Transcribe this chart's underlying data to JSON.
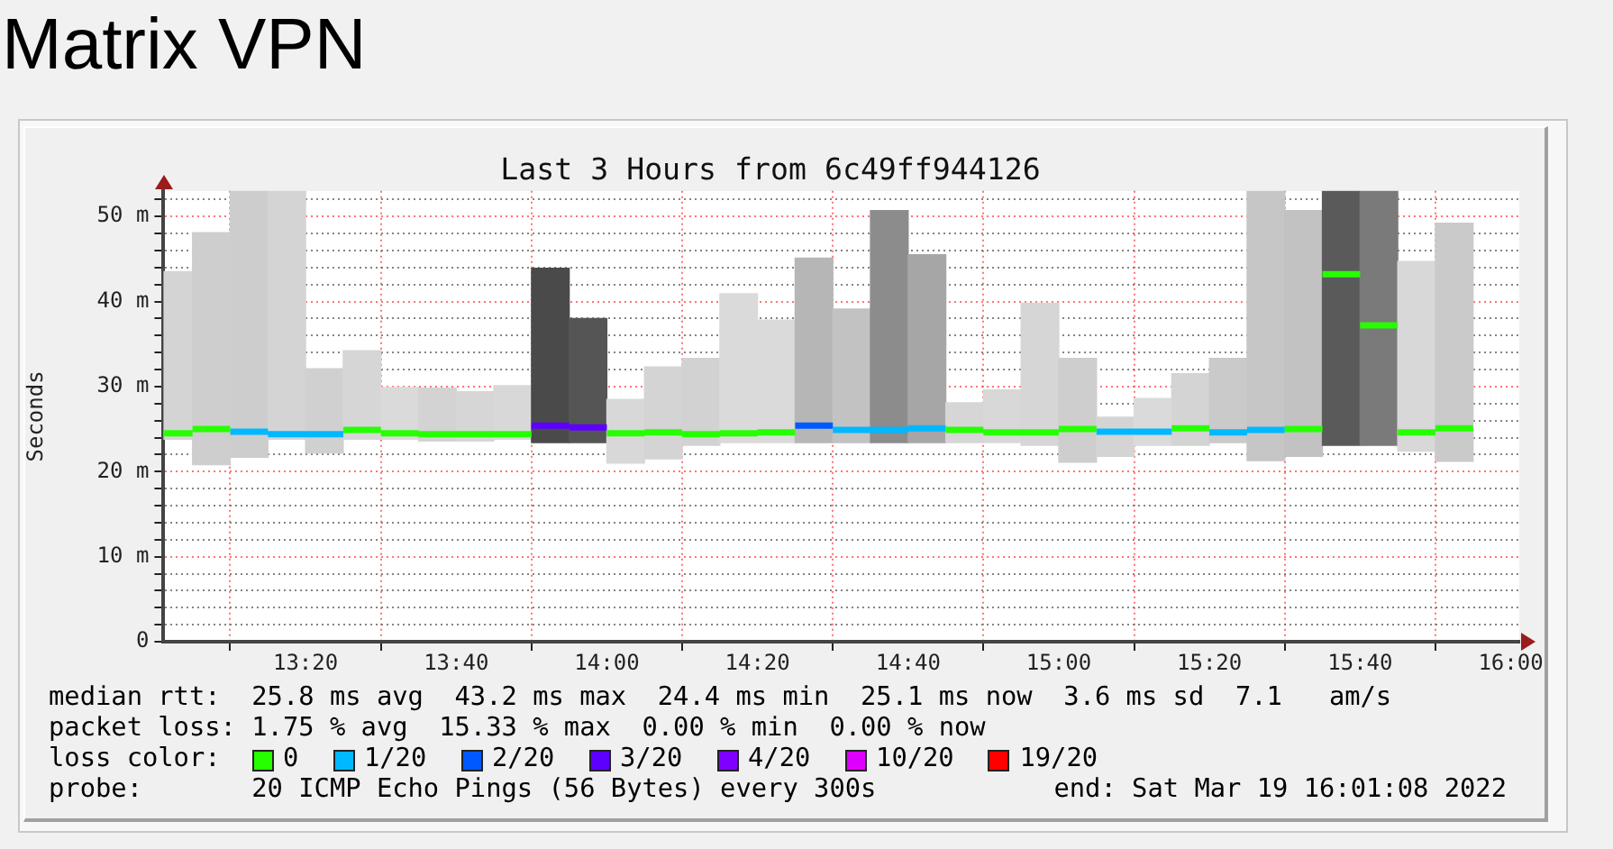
{
  "chart_data": {
    "type": "bar",
    "title": "Matrix VPN",
    "subtitle": "Last 3 Hours from 6c49ff944126",
    "ylabel": "Seconds",
    "x": [
      13.0417,
      13.125,
      13.2083,
      13.2917,
      13.375,
      13.4583,
      13.5417,
      13.625,
      13.7083,
      13.7917,
      13.875,
      13.9583,
      14.0417,
      14.125,
      14.2083,
      14.2917,
      14.375,
      14.4583,
      14.5417,
      14.625,
      14.7083,
      14.7917,
      14.875,
      14.9583,
      15.0417,
      15.125,
      15.2083,
      15.2917,
      15.375,
      15.4583,
      15.5417,
      15.625,
      15.7083,
      15.7917,
      15.875
    ],
    "series": [
      {
        "colors": [
          "#d4d4d4",
          "#cecece",
          "#cdcdcd",
          "#d4d4d4",
          "#d0d0d0",
          "#d6d6d6",
          "#dadada",
          "#d3d3d3",
          "#d6d6d6",
          "#d8d8d8",
          "#4a4a4a",
          "#555555",
          "#d8d8d8",
          "#d4d4d4",
          "#d2d2d2",
          "#dadada",
          "#dadada",
          "#b6b6b6",
          "#c2c2c2",
          "#8c8c8c",
          "#a6a6a6",
          "#d6d6d6",
          "#d8d8d8",
          "#d6d6d6",
          "#cecece",
          "#d4d4d4",
          "#dadada",
          "#d4d4d4",
          "#cacaca",
          "#c6c6c6",
          "#c2c2c2",
          "#5a5a5a",
          "#7a7a7a",
          "#d8d8d8",
          "#cacaca"
        ],
        "base": [
          23.8,
          20.8,
          21.7,
          23.8,
          22.2,
          23.8,
          23.8,
          23.6,
          23.6,
          23.8,
          23.4,
          23.4,
          21,
          21.5,
          23.1,
          23.4,
          23.4,
          23.4,
          23.4,
          23.4,
          23.4,
          23.4,
          23.4,
          23.1,
          21.1,
          21.8,
          23.1,
          23.1,
          23.4,
          21.3,
          21.8,
          23.1,
          23.1,
          22.4,
          21.2
        ],
        "values": [
          19.7,
          27.3,
          31.3,
          29.2,
          9.9,
          10.4,
          6.1,
          6.2,
          5.8,
          6.3,
          20.5,
          14.6,
          7.5,
          10.8,
          10.2,
          17.5,
          14.4,
          21.7,
          15.7,
          27.3,
          22.1,
          4.7,
          6.2,
          16.7,
          12.2,
          4.6,
          5.5,
          8.4,
          9.9,
          31.7,
          28.9,
          29.9,
          29.9,
          22.3,
          28
        ]
      },
      {
        "type": "line",
        "name": "0",
        "color": "#26ff00",
        "x": [
          13.0189,
          13.0833,
          null,
          13.0833,
          13.1667,
          null,
          13.4167,
          13.5,
          null,
          13.5,
          13.5833,
          null,
          13.5833,
          13.6667,
          null,
          13.6667,
          13.75,
          null,
          13.75,
          13.8333,
          null,
          14,
          14.0833,
          null,
          14.0833,
          14.1667,
          null,
          14.1667,
          14.25,
          null,
          14.25,
          14.3333,
          null,
          14.3333,
          14.4167,
          null,
          14.75,
          14.8333,
          null,
          14.8333,
          14.9167,
          null,
          14.9167,
          15,
          null,
          15,
          15.0833,
          null,
          15.25,
          15.3333,
          null,
          15.5,
          15.5833,
          null,
          15.5833,
          15.6667,
          null,
          15.6667,
          15.75,
          null,
          15.75,
          15.8333,
          null,
          15.8333,
          15.9167
        ],
        "values": [
          24.5,
          24.5,
          null,
          25,
          25,
          null,
          24.9,
          24.9,
          null,
          24.5,
          24.5,
          null,
          24.4,
          24.4,
          null,
          24.4,
          24.4,
          null,
          24.4,
          24.4,
          null,
          24.5,
          24.5,
          null,
          24.6,
          24.6,
          null,
          24.4,
          24.4,
          null,
          24.5,
          24.5,
          null,
          24.6,
          24.6,
          null,
          24.9,
          24.9,
          null,
          24.6,
          24.6,
          null,
          24.6,
          24.6,
          null,
          25,
          25,
          null,
          25.1,
          25.1,
          null,
          25,
          25,
          null,
          43.2,
          43.2,
          null,
          37.2,
          37.2,
          null,
          24.6,
          24.6,
          null,
          25.1,
          25.1
        ]
      },
      {
        "type": "line",
        "name": "1/20",
        "color": "#00b8ff",
        "x": [
          13.1667,
          13.25,
          null,
          13.25,
          13.3333,
          null,
          13.3333,
          13.4167,
          null,
          14.5,
          14.5833,
          null,
          14.5833,
          14.6667,
          null,
          14.6667,
          14.75,
          null,
          15.0833,
          15.1667,
          null,
          15.1667,
          15.25,
          null,
          15.3333,
          15.4167,
          null,
          15.4167,
          15.5
        ],
        "values": [
          24.7,
          24.7,
          null,
          24.4,
          24.4,
          null,
          24.4,
          24.4,
          null,
          24.9,
          24.9,
          null,
          24.9,
          24.9,
          null,
          25.1,
          25.1,
          null,
          24.7,
          24.7,
          null,
          24.7,
          24.7,
          null,
          24.6,
          24.6,
          null,
          24.9,
          24.9
        ]
      },
      {
        "type": "line",
        "name": "2/20",
        "color": "#0059ff",
        "x": [
          14.4167,
          14.5
        ],
        "values": [
          25.4,
          25.4
        ]
      },
      {
        "type": "line",
        "name": "3/20",
        "color": "#5e00ff",
        "x": [
          13.8333,
          13.9167,
          null,
          13.9167,
          14
        ],
        "values": [
          25.4,
          25.4,
          null,
          25.2,
          25.2
        ]
      },
      {
        "type": "line",
        "name": "4/20",
        "color": "#7e00ff",
        "values": [
          null,
          null,
          null,
          null,
          null,
          null,
          null,
          null,
          null,
          null,
          null,
          null,
          null,
          null,
          null,
          null,
          null,
          null,
          null,
          null,
          null,
          null,
          null,
          null,
          null,
          null,
          null,
          null,
          null,
          null,
          null,
          null,
          null,
          null,
          null
        ]
      },
      {
        "type": "line",
        "name": "10/20",
        "color": "#dd00ff",
        "values": [
          null,
          null,
          null,
          null,
          null,
          null,
          null,
          null,
          null,
          null,
          null,
          null,
          null,
          null,
          null,
          null,
          null,
          null,
          null,
          null,
          null,
          null,
          null,
          null,
          null,
          null,
          null,
          null,
          null,
          null,
          null,
          null,
          null,
          null,
          null
        ]
      },
      {
        "type": "line",
        "name": "19/20",
        "color": "#ff0000",
        "values": [
          null,
          null,
          null,
          null,
          null,
          null,
          null,
          null,
          null,
          null,
          null,
          null,
          null,
          null,
          null,
          null,
          null,
          null,
          null,
          null,
          null,
          null,
          null,
          null,
          null,
          null,
          null,
          null,
          null,
          null,
          null,
          null,
          null,
          null,
          null
        ]
      }
    ],
    "xlim": [
      13.0189,
      16.0189
    ],
    "xticks": [
      {
        "value": 13.3333,
        "label": "13:20"
      },
      {
        "value": 13.6667,
        "label": "13:40"
      },
      {
        "value": 14,
        "label": "14:00"
      },
      {
        "value": 14.3333,
        "label": "14:20"
      },
      {
        "value": 14.6667,
        "label": "14:40"
      },
      {
        "value": 15,
        "label": "15:00"
      },
      {
        "value": 15.3333,
        "label": "15:20"
      },
      {
        "value": 15.6667,
        "label": "15:40"
      },
      {
        "value": 16,
        "label": "16:00"
      }
    ],
    "ylim": [
      0,
      53
    ],
    "yticks": [
      0,
      {
        "value": 2,
        "label": null
      },
      {
        "value": 4,
        "label": null
      },
      {
        "value": 6,
        "label": null
      },
      {
        "value": 8,
        "label": null
      },
      {
        "value": 10,
        "label": "10 m"
      },
      {
        "value": 12,
        "label": null
      },
      {
        "value": 14,
        "label": null
      },
      {
        "value": 16,
        "label": null
      },
      {
        "value": 18,
        "label": null
      },
      {
        "value": 20,
        "label": "20 m"
      },
      {
        "value": 22,
        "label": null
      },
      {
        "value": 24,
        "label": null
      },
      {
        "value": 26,
        "label": null
      },
      {
        "value": 28,
        "label": null
      },
      {
        "value": 30,
        "label": "30 m"
      },
      {
        "value": 32,
        "label": null
      },
      {
        "value": 34,
        "label": null
      },
      {
        "value": 36,
        "label": null
      },
      {
        "value": 38,
        "label": null
      },
      {
        "value": 40,
        "label": "40 m"
      },
      {
        "value": 42,
        "label": null
      },
      {
        "value": 44,
        "label": null
      },
      {
        "value": 46,
        "label": null
      },
      {
        "value": 48,
        "label": null
      },
      {
        "value": 50,
        "label": "50 m"
      },
      {
        "value": 52,
        "label": null
      }
    ],
    "grid": true,
    "legend": "bottom",
    "legend_title": "loss color:",
    "annotations": [
      "median rtt:  25.8 ms avg  43.2 ms max  24.4 ms min  25.1 ms now  3.6 ms sd  7.1   am/s",
      "packet loss: 1.75 % avg  15.33 % max  0.00 % min  0.00 % now",
      "probe:       20 ICMP Echo Pings (56 Bytes) every 300s",
      "end: Sat Mar 19 16:01:08 2022"
    ]
  }
}
